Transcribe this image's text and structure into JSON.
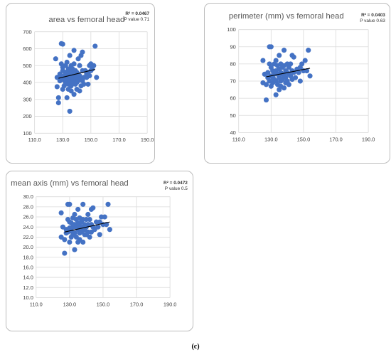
{
  "caption": "(c)",
  "colors": {
    "point": "#4472c4",
    "grid": "#d9d9d9",
    "trendline": "#000000",
    "axis_text": "#404040",
    "title_text": "#595959"
  },
  "chart_data": [
    {
      "type": "scatter",
      "title": "area vs femoral head",
      "stats": [
        "R² = 0.0467",
        "P value 0.71"
      ],
      "xlabel": "",
      "ylabel": "",
      "xlim": [
        110,
        190
      ],
      "ylim": [
        100,
        700
      ],
      "xticks": [
        110,
        130,
        150,
        170,
        190
      ],
      "xtick_labels": [
        "110.0",
        "130.0",
        "150.0",
        "170.0",
        "190.0"
      ],
      "yticks": [
        100,
        200,
        300,
        400,
        500,
        600,
        700
      ],
      "ytick_labels": [
        "100",
        "200",
        "300",
        "400",
        "500",
        "600",
        "700"
      ],
      "grid": true,
      "legend": "none",
      "trendline": [
        [
          127,
          425
        ],
        [
          153,
          478
        ]
      ],
      "points": [
        [
          125,
          540
        ],
        [
          126,
          430
        ],
        [
          126,
          375
        ],
        [
          127,
          280
        ],
        [
          127,
          310
        ],
        [
          128,
          450
        ],
        [
          128,
          410
        ],
        [
          129,
          430
        ],
        [
          129,
          510
        ],
        [
          129,
          630
        ],
        [
          130,
          627
        ],
        [
          130,
          490
        ],
        [
          130,
          470
        ],
        [
          130,
          360
        ],
        [
          131,
          440
        ],
        [
          131,
          415
        ],
        [
          131,
          380
        ],
        [
          132,
          460
        ],
        [
          132,
          500
        ],
        [
          132,
          400
        ],
        [
          133,
          520
        ],
        [
          133,
          450
        ],
        [
          133,
          420
        ],
        [
          133,
          310
        ],
        [
          134,
          480
        ],
        [
          134,
          430
        ],
        [
          134,
          390
        ],
        [
          134,
          360
        ],
        [
          135,
          560
        ],
        [
          135,
          470
        ],
        [
          135,
          440
        ],
        [
          135,
          410
        ],
        [
          135,
          230
        ],
        [
          136,
          500
        ],
        [
          136,
          450
        ],
        [
          136,
          420
        ],
        [
          136,
          380
        ],
        [
          136,
          350
        ],
        [
          137,
          480
        ],
        [
          137,
          460
        ],
        [
          137,
          430
        ],
        [
          137,
          400
        ],
        [
          138,
          590
        ],
        [
          138,
          510
        ],
        [
          138,
          440
        ],
        [
          138,
          330
        ],
        [
          139,
          470
        ],
        [
          139,
          420
        ],
        [
          139,
          390
        ],
        [
          140,
          460
        ],
        [
          140,
          430
        ],
        [
          140,
          400
        ],
        [
          140,
          360
        ],
        [
          141,
          540
        ],
        [
          141,
          450
        ],
        [
          141,
          410
        ],
        [
          142,
          500
        ],
        [
          142,
          440
        ],
        [
          142,
          350
        ],
        [
          143,
          560
        ],
        [
          143,
          420
        ],
        [
          143,
          380
        ],
        [
          144,
          580
        ],
        [
          144,
          470
        ],
        [
          144,
          410
        ],
        [
          145,
          430
        ],
        [
          145,
          390
        ],
        [
          146,
          470
        ],
        [
          147,
          450
        ],
        [
          147,
          430
        ],
        [
          148,
          460
        ],
        [
          148,
          390
        ],
        [
          149,
          500
        ],
        [
          149,
          440
        ],
        [
          150,
          510
        ],
        [
          150,
          470
        ],
        [
          151,
          480
        ],
        [
          152,
          500
        ],
        [
          153,
          615
        ],
        [
          154,
          430
        ]
      ]
    },
    {
      "type": "scatter",
      "title": "perimeter (mm) vs femoral head",
      "stats": [
        "R² = 0.0403",
        "P value 0.63"
      ],
      "xlabel": "",
      "ylabel": "",
      "xlim": [
        110,
        190
      ],
      "ylim": [
        40,
        100
      ],
      "xticks": [
        110,
        130,
        150,
        170,
        190
      ],
      "xtick_labels": [
        "110.0",
        "130.0",
        "150.0",
        "170.0",
        "190.0"
      ],
      "yticks": [
        40,
        50,
        60,
        70,
        80,
        90,
        100
      ],
      "ytick_labels": [
        "40",
        "50",
        "60",
        "70",
        "80",
        "90",
        "100"
      ],
      "grid": true,
      "legend": "none",
      "trendline": [
        [
          127,
          72.5
        ],
        [
          154,
          77.5
        ]
      ],
      "points": [
        [
          125,
          82
        ],
        [
          125,
          69
        ],
        [
          126,
          74
        ],
        [
          127,
          59
        ],
        [
          127,
          68
        ],
        [
          128,
          72
        ],
        [
          128,
          75
        ],
        [
          129,
          90
        ],
        [
          129,
          80
        ],
        [
          129,
          70
        ],
        [
          130,
          90
        ],
        [
          130,
          78
        ],
        [
          130,
          73
        ],
        [
          130,
          67
        ],
        [
          131,
          76
        ],
        [
          131,
          72
        ],
        [
          131,
          69
        ],
        [
          132,
          80
        ],
        [
          132,
          74
        ],
        [
          132,
          71
        ],
        [
          133,
          82
        ],
        [
          133,
          76
        ],
        [
          133,
          70
        ],
        [
          133,
          62
        ],
        [
          134,
          79
        ],
        [
          134,
          74
        ],
        [
          134,
          68
        ],
        [
          135,
          85
        ],
        [
          135,
          77
        ],
        [
          135,
          72
        ],
        [
          135,
          65
        ],
        [
          136,
          80
        ],
        [
          136,
          75
        ],
        [
          136,
          70
        ],
        [
          136,
          67
        ],
        [
          137,
          78
        ],
        [
          137,
          74
        ],
        [
          137,
          71
        ],
        [
          138,
          88
        ],
        [
          138,
          79
        ],
        [
          138,
          73
        ],
        [
          138,
          66
        ],
        [
          139,
          76
        ],
        [
          139,
          72
        ],
        [
          139,
          69
        ],
        [
          140,
          80
        ],
        [
          140,
          75
        ],
        [
          140,
          70
        ],
        [
          141,
          78
        ],
        [
          141,
          74
        ],
        [
          141,
          68
        ],
        [
          142,
          80
        ],
        [
          142,
          73
        ],
        [
          143,
          85
        ],
        [
          143,
          76
        ],
        [
          143,
          71
        ],
        [
          144,
          84
        ],
        [
          144,
          75
        ],
        [
          145,
          72
        ],
        [
          146,
          77
        ],
        [
          147,
          75
        ],
        [
          148,
          78
        ],
        [
          148,
          70
        ],
        [
          149,
          80
        ],
        [
          150,
          76
        ],
        [
          151,
          82
        ],
        [
          152,
          76
        ],
        [
          153,
          88
        ],
        [
          154,
          73
        ]
      ]
    },
    {
      "type": "scatter",
      "title": "mean axis (mm) vs femoral head",
      "stats": [
        "R² = 0.0472",
        "P value 0.5"
      ],
      "xlabel": "",
      "ylabel": "",
      "xlim": [
        110,
        190
      ],
      "ylim": [
        10,
        30
      ],
      "xticks": [
        110,
        130,
        150,
        170,
        190
      ],
      "xtick_labels": [
        "110.0",
        "130.0",
        "150.0",
        "170.0",
        "190.0"
      ],
      "yticks": [
        10,
        12,
        14,
        16,
        18,
        20,
        22,
        24,
        26,
        28,
        30
      ],
      "ytick_labels": [
        "10.0",
        "12.0",
        "14.0",
        "16.0",
        "18.0",
        "20.0",
        "22.0",
        "24.0",
        "26.0",
        "28.0",
        "30.0"
      ],
      "grid": true,
      "legend": "none",
      "trendline": [
        [
          127,
          23.0
        ],
        [
          154,
          25.0
        ]
      ],
      "points": [
        [
          125,
          26.8
        ],
        [
          125,
          22.0
        ],
        [
          126,
          24.0
        ],
        [
          127,
          18.8
        ],
        [
          127,
          21.5
        ],
        [
          128,
          23.5
        ],
        [
          128,
          22.8
        ],
        [
          129,
          28.5
        ],
        [
          129,
          25.5
        ],
        [
          129,
          23.0
        ],
        [
          130,
          28.5
        ],
        [
          130,
          25.0
        ],
        [
          130,
          23.8
        ],
        [
          130,
          21.0
        ],
        [
          131,
          24.8
        ],
        [
          131,
          23.2
        ],
        [
          131,
          22.0
        ],
        [
          132,
          25.8
        ],
        [
          132,
          24.0
        ],
        [
          132,
          22.5
        ],
        [
          133,
          26.5
        ],
        [
          133,
          24.5
        ],
        [
          133,
          22.8
        ],
        [
          133,
          19.5
        ],
        [
          134,
          25.5
        ],
        [
          134,
          24.0
        ],
        [
          134,
          22.0
        ],
        [
          135,
          27.5
        ],
        [
          135,
          24.8
        ],
        [
          135,
          23.5
        ],
        [
          135,
          21.0
        ],
        [
          136,
          25.8
        ],
        [
          136,
          24.2
        ],
        [
          136,
          22.8
        ],
        [
          136,
          21.5
        ],
        [
          137,
          25.0
        ],
        [
          137,
          24.0
        ],
        [
          137,
          23.0
        ],
        [
          138,
          28.5
        ],
        [
          138,
          25.5
        ],
        [
          138,
          23.5
        ],
        [
          138,
          21.0
        ],
        [
          139,
          24.5
        ],
        [
          139,
          23.5
        ],
        [
          139,
          22.5
        ],
        [
          140,
          25.5
        ],
        [
          140,
          24.0
        ],
        [
          140,
          22.5
        ],
        [
          141,
          26.5
        ],
        [
          141,
          24.5
        ],
        [
          141,
          23.0
        ],
        [
          142,
          25.5
        ],
        [
          142,
          22.0
        ],
        [
          143,
          27.5
        ],
        [
          143,
          24.5
        ],
        [
          143,
          23.0
        ],
        [
          144,
          27.8
        ],
        [
          144,
          24.0
        ],
        [
          145,
          23.5
        ],
        [
          146,
          25.0
        ],
        [
          147,
          24.0
        ],
        [
          148,
          25.0
        ],
        [
          148,
          22.5
        ],
        [
          149,
          26.0
        ],
        [
          150,
          24.5
        ],
        [
          151,
          26.0
        ],
        [
          152,
          24.5
        ],
        [
          153,
          28.5
        ],
        [
          154,
          23.5
        ]
      ]
    }
  ]
}
